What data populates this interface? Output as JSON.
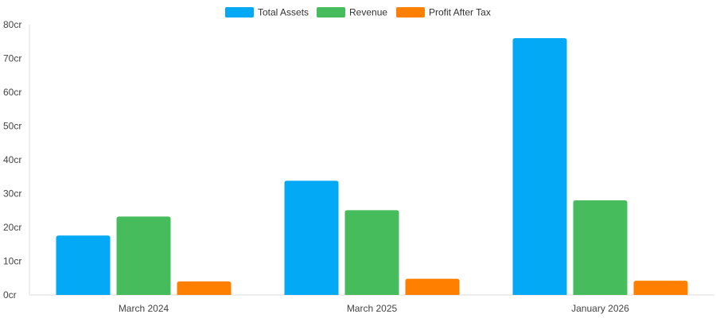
{
  "chart_data": {
    "type": "bar",
    "title": "",
    "xlabel": "",
    "ylabel": "",
    "categories": [
      "March 2024",
      "March 2025",
      "January 2026"
    ],
    "series": [
      {
        "name": "Total Assets",
        "color": "#03A9F4",
        "values": [
          17.6,
          33.8,
          76.0
        ]
      },
      {
        "name": "Revenue",
        "color": "#47BC5C",
        "values": [
          23.2,
          25.1,
          28.0
        ]
      },
      {
        "name": "Profit After Tax",
        "color": "#FF8000",
        "values": [
          4.0,
          4.8,
          4.2
        ]
      }
    ],
    "ylim": [
      0,
      80
    ],
    "yticks": [
      0,
      10,
      20,
      30,
      40,
      50,
      60,
      70,
      80
    ],
    "ytick_suffix": "cr",
    "legend_position": "top-center",
    "grid": false
  }
}
